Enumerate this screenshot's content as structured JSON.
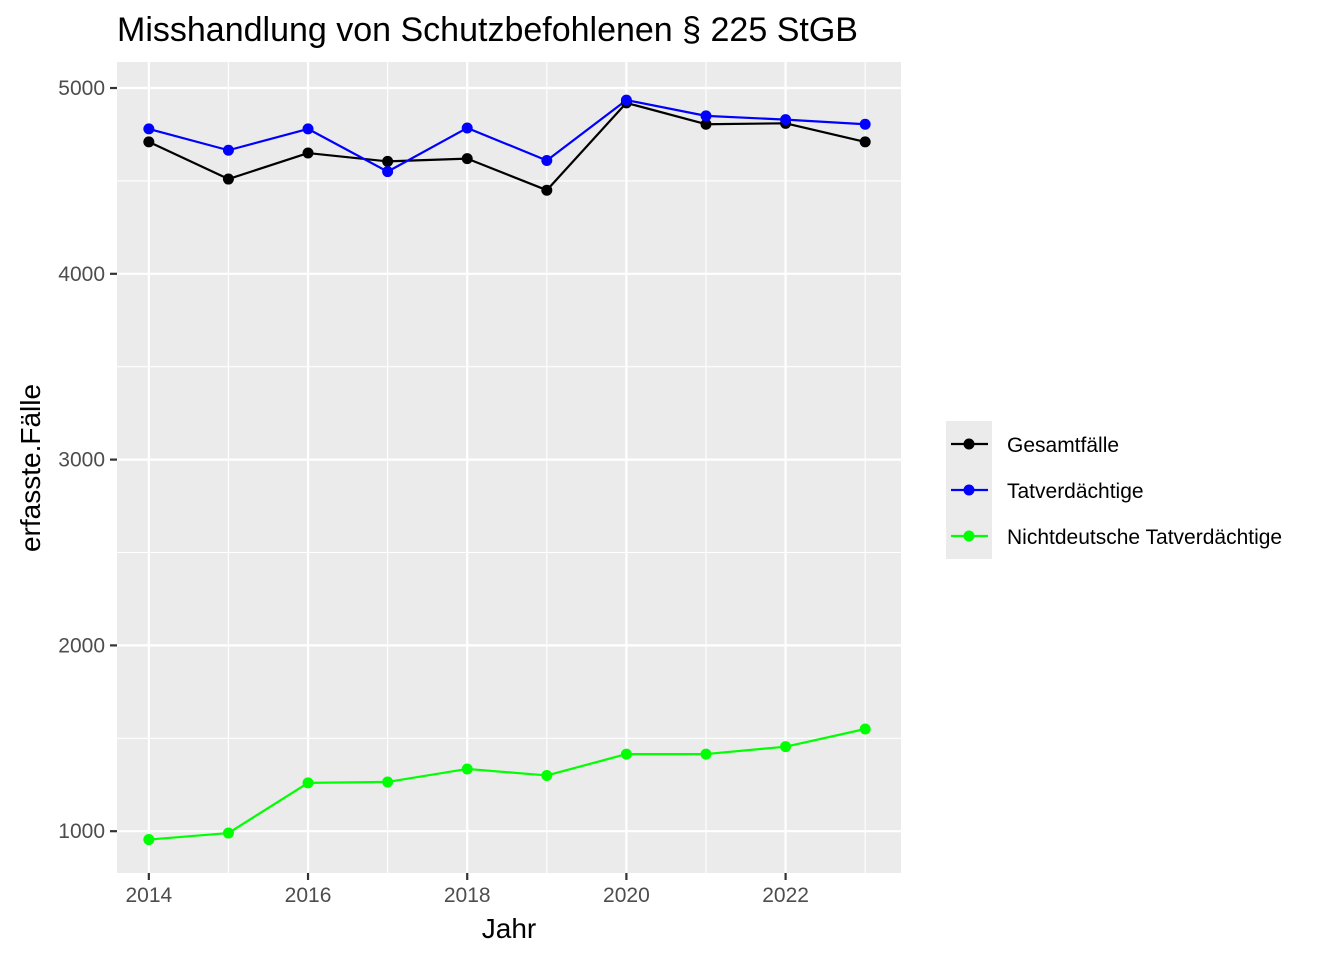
{
  "chart_data": {
    "type": "line",
    "title": "Misshandlung von Schutzbefohlenen § 225 StGB",
    "xlabel": "Jahr",
    "ylabel": "erfasste.Fälle",
    "x": [
      2014,
      2015,
      2016,
      2017,
      2018,
      2019,
      2020,
      2021,
      2022,
      2023
    ],
    "xlim": [
      2013.6,
      2023.45
    ],
    "ylim": [
      775,
      5140
    ],
    "x_ticks": [
      "2014",
      "2016",
      "2018",
      "2020",
      "2022"
    ],
    "y_ticks": [
      "1000",
      "2000",
      "3000",
      "4000",
      "5000"
    ],
    "grid": true,
    "legend_position": "right",
    "series": [
      {
        "name": "Gesamtfälle",
        "color": "#000000",
        "values": [
          4710,
          4510,
          4650,
          4605,
          4620,
          4450,
          4920,
          4805,
          4810,
          4710
        ]
      },
      {
        "name": "Tatverdächtige",
        "color": "#0000ff",
        "values": [
          4780,
          4665,
          4780,
          4550,
          4785,
          4610,
          4935,
          4850,
          4830,
          4805
        ]
      },
      {
        "name": "Nichtdeutsche Tatverdächtige",
        "color": "#00ff00",
        "values": [
          955,
          990,
          1260,
          1265,
          1335,
          1300,
          1415,
          1415,
          1455,
          1550
        ]
      }
    ]
  }
}
